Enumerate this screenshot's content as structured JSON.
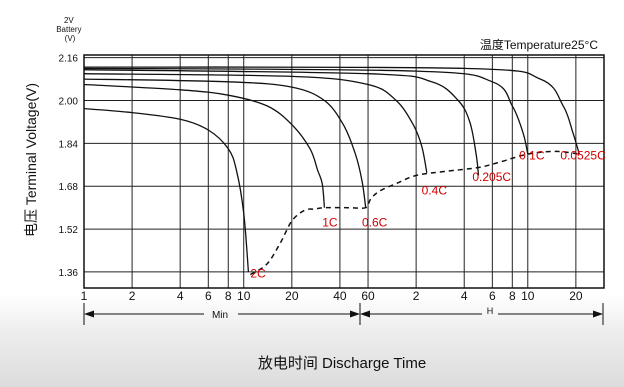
{
  "chart_data": {
    "type": "line",
    "battery_label_lines": [
      "2V",
      "Battery",
      "(V)"
    ],
    "temperature_label": "温度Temperature25°C",
    "ylabel": "电压 Terminal Voltage(V)",
    "xlabel": "放电时间 Discharge Time",
    "x_unit_min": "Min",
    "x_unit_hour": "H",
    "grid": true,
    "ylim": [
      1.3,
      2.17
    ],
    "y_ticks": [
      {
        "value": 2.16,
        "label": "2.16"
      },
      {
        "value": 2.0,
        "label": "2.00"
      },
      {
        "value": 1.84,
        "label": "1.84"
      },
      {
        "value": 1.68,
        "label": "1.68"
      },
      {
        "value": 1.52,
        "label": "1.52"
      },
      {
        "value": 1.36,
        "label": "1.36"
      }
    ],
    "x_ticks": [
      {
        "minutes": 1,
        "label": "1"
      },
      {
        "minutes": 2,
        "label": "2"
      },
      {
        "minutes": 4,
        "label": "4"
      },
      {
        "minutes": 6,
        "label": "6"
      },
      {
        "minutes": 8,
        "label": "8"
      },
      {
        "minutes": 10,
        "label": "10"
      },
      {
        "minutes": 20,
        "label": "20"
      },
      {
        "minutes": 40,
        "label": "40"
      },
      {
        "minutes": 60,
        "label": "60"
      },
      {
        "minutes": 120,
        "label": "2"
      },
      {
        "minutes": 240,
        "label": "4"
      },
      {
        "minutes": 360,
        "label": "6"
      },
      {
        "minutes": 480,
        "label": "8"
      },
      {
        "minutes": 600,
        "label": "10"
      },
      {
        "minutes": 1200,
        "label": "20"
      }
    ],
    "series": [
      {
        "name": "2C",
        "label_at": [
          11,
          1.34
        ],
        "points": [
          [
            1,
            1.97
          ],
          [
            2,
            1.955
          ],
          [
            4,
            1.93
          ],
          [
            6,
            1.89
          ],
          [
            8,
            1.82
          ],
          [
            9,
            1.74
          ],
          [
            10,
            1.58
          ],
          [
            10.7,
            1.36
          ]
        ]
      },
      {
        "name": "1C",
        "label_at": [
          31,
          1.53
        ],
        "points": [
          [
            1,
            2.06
          ],
          [
            4,
            2.04
          ],
          [
            8,
            2.02
          ],
          [
            14,
            1.98
          ],
          [
            20,
            1.91
          ],
          [
            26,
            1.82
          ],
          [
            29,
            1.74
          ],
          [
            31,
            1.69
          ],
          [
            32,
            1.6
          ]
        ]
      },
      {
        "name": "0.6C",
        "label_at": [
          55,
          1.53
        ],
        "points": [
          [
            1,
            2.08
          ],
          [
            8,
            2.07
          ],
          [
            20,
            2.05
          ],
          [
            32,
            2.0
          ],
          [
            42,
            1.91
          ],
          [
            50,
            1.8
          ],
          [
            55,
            1.7
          ],
          [
            58,
            1.6
          ]
        ]
      },
      {
        "name": "0.4C",
        "label_at": [
          130,
          1.65
        ],
        "points": [
          [
            1,
            2.1
          ],
          [
            20,
            2.09
          ],
          [
            60,
            2.06
          ],
          [
            90,
            2.0
          ],
          [
            115,
            1.91
          ],
          [
            130,
            1.83
          ],
          [
            140,
            1.73
          ]
        ]
      },
      {
        "name": "0.205C",
        "label_at": [
          270,
          1.7
        ],
        "points": [
          [
            1,
            2.115
          ],
          [
            60,
            2.1
          ],
          [
            150,
            2.07
          ],
          [
            220,
            2.0
          ],
          [
            260,
            1.92
          ],
          [
            285,
            1.8
          ],
          [
            295,
            1.72
          ]
        ]
      },
      {
        "name": "0.1C",
        "label_at": [
          530,
          1.78
        ],
        "points": [
          [
            1,
            2.12
          ],
          [
            120,
            2.11
          ],
          [
            360,
            2.07
          ],
          [
            480,
            1.98
          ],
          [
            560,
            1.88
          ],
          [
            600,
            1.8
          ]
        ]
      },
      {
        "name": "0.0525C",
        "label_at": [
          960,
          1.78
        ],
        "points": [
          [
            1,
            2.125
          ],
          [
            240,
            2.12
          ],
          [
            720,
            2.08
          ],
          [
            1000,
            1.98
          ],
          [
            1150,
            1.88
          ],
          [
            1260,
            1.8
          ]
        ]
      }
    ],
    "end_voltage_line": [
      [
        11,
        1.35
      ],
      [
        14,
        1.39
      ],
      [
        17,
        1.47
      ],
      [
        20,
        1.55
      ],
      [
        24,
        1.59
      ],
      [
        28,
        1.595
      ],
      [
        32,
        1.6
      ],
      [
        45,
        1.6
      ],
      [
        58,
        1.6
      ],
      [
        62,
        1.63
      ],
      [
        70,
        1.66
      ],
      [
        90,
        1.69
      ],
      [
        120,
        1.72
      ],
      [
        180,
        1.735
      ],
      [
        295,
        1.75
      ],
      [
        400,
        1.77
      ],
      [
        600,
        1.8
      ],
      [
        900,
        1.81
      ],
      [
        1260,
        1.8
      ]
    ]
  }
}
